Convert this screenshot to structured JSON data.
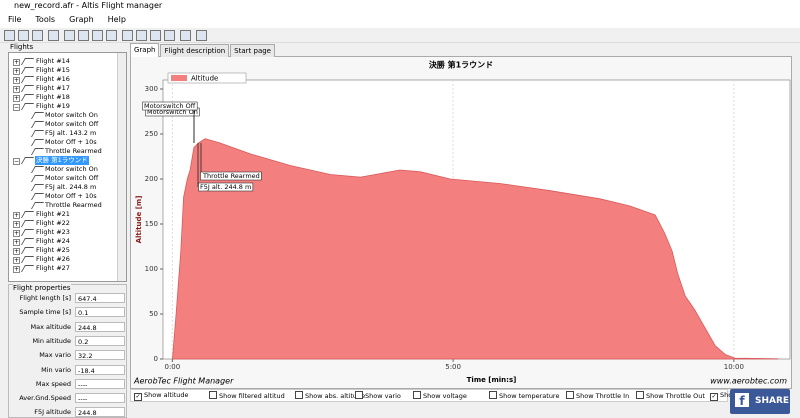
{
  "window": {
    "title": "new_record.afr - Altis Flight manager"
  },
  "menu": [
    "File",
    "Tools",
    "Graph",
    "Help"
  ],
  "flights": {
    "label": "Flights",
    "items": [
      {
        "label": "Flight #14"
      },
      {
        "label": "Flight #15"
      },
      {
        "label": "Flight #16"
      },
      {
        "label": "Flight #17"
      },
      {
        "label": "Flight #18"
      },
      {
        "label": "Flight #19",
        "children": [
          "Motor switch On",
          "Motor switch Off",
          "F5J alt. 143.2 m",
          "Motor Off + 10s",
          "Throttle Rearmed"
        ]
      },
      {
        "label": "決勝 第1ラウンド",
        "selected": true,
        "children": [
          "Motor switch On",
          "Motor switch Off",
          "F5J alt. 244.8 m",
          "Motor Off + 10s",
          "Throttle Rearmed"
        ]
      },
      {
        "label": "Flight #21"
      },
      {
        "label": "Flight #22"
      },
      {
        "label": "Flight #23"
      },
      {
        "label": "Flight #24"
      },
      {
        "label": "Flight #25"
      },
      {
        "label": "Flight #26"
      },
      {
        "label": "Flight #27"
      }
    ]
  },
  "properties": {
    "title": "Flight properties",
    "rows": [
      [
        "Flight length [s]",
        "647.4"
      ],
      [
        "Sample time [s]",
        "0.1"
      ],
      [
        "Max altitude",
        "244.8"
      ],
      [
        "Min altitude",
        "0.2"
      ],
      [
        "Max vario",
        "32.2"
      ],
      [
        "Min vario",
        "-18.4"
      ],
      [
        "Max speed",
        "----"
      ],
      [
        "Aver.Gnd.Speed",
        "----"
      ],
      [
        "F5J altitude",
        "244.8"
      ]
    ]
  },
  "tabs": [
    {
      "label": "Graph",
      "active": true
    },
    {
      "label": "Flight description"
    },
    {
      "label": "Start page"
    }
  ],
  "chart": {
    "type": "area",
    "title": "決勝 第1ラウンド",
    "legend": "Altitude",
    "color": "#f47f7f",
    "line_color": "#d95a5a",
    "y_label": "Altitude [m]",
    "x_label": "Time [min:s]",
    "x": [
      0,
      4,
      9,
      12,
      16,
      19,
      23,
      28,
      35,
      51,
      83,
      126,
      169,
      201,
      243,
      265,
      297,
      350,
      404,
      457,
      489,
      516,
      526,
      534,
      540,
      548,
      558,
      569,
      580,
      591,
      601,
      647
    ],
    "values": [
      0,
      50,
      120,
      180,
      200,
      210,
      235,
      240,
      244.8,
      240,
      228,
      215,
      205,
      202,
      210,
      208,
      200,
      195,
      187,
      178,
      170,
      160,
      140,
      120,
      95,
      70,
      55,
      35,
      15,
      5,
      1,
      0.2
    ],
    "xlim": [
      -10,
      660
    ],
    "ylim": [
      0,
      310
    ],
    "yticks": [
      0,
      50,
      100,
      150,
      200,
      250,
      300
    ],
    "xticks": [
      {
        "value": 0,
        "label": "0:00"
      },
      {
        "value": 300,
        "label": "5:00"
      },
      {
        "value": 600,
        "label": "10:00"
      }
    ],
    "annotations": [
      "Motorswitch On",
      "Motorswitch Off",
      "Throttle Rearmed",
      "F5J alt. 244.8 m"
    ],
    "footer_left": "AerobTec Flight Manager",
    "footer_right": "www.aerobtec.com"
  },
  "options": [
    {
      "label": "Show altitude",
      "checked": true
    },
    {
      "label": "Show filtered altitud"
    },
    {
      "label": "Show abs. altitude"
    },
    {
      "label": "Show vario"
    },
    {
      "label": "Show voltage"
    },
    {
      "label": "Show temperature"
    },
    {
      "label": "Show Throttle In"
    },
    {
      "label": "Show Throttle Out"
    },
    {
      "label": "Show",
      "checked": true
    }
  ],
  "share": "SHARE"
}
